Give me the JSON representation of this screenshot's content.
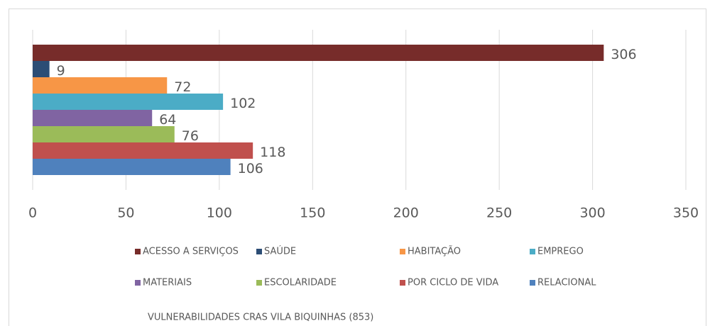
{
  "chart_data": {
    "type": "bar",
    "orientation": "horizontal",
    "title": "VULNERABILIDADES CRAS VILA BIQUINHAS (853)",
    "series": [
      {
        "name": "ACESSO A SERVIÇOS",
        "color": "#772c2a",
        "values": [
          306
        ]
      },
      {
        "name": "SAÚDE",
        "color": "#2c4d75",
        "values": [
          9
        ]
      },
      {
        "name": "HABITAÇÃO",
        "color": "#f79646",
        "values": [
          72
        ]
      },
      {
        "name": "EMPREGO",
        "color": "#4bacc6",
        "values": [
          102
        ]
      },
      {
        "name": "MATERIAIS",
        "color": "#8064a2",
        "values": [
          64
        ]
      },
      {
        "name": "ESCOLARIDADE",
        "color": "#9bbb59",
        "values": [
          76
        ]
      },
      {
        "name": "POR CICLO DE VIDA",
        "color": "#c0504d",
        "values": [
          118
        ]
      },
      {
        "name": "RELACIONAL",
        "color": "#4f81bd",
        "values": [
          106
        ]
      }
    ],
    "xlim": [
      0,
      350
    ],
    "xticks": [
      0,
      50,
      100,
      150,
      200,
      250,
      300,
      350
    ],
    "grid": true,
    "legend": "bottom"
  }
}
